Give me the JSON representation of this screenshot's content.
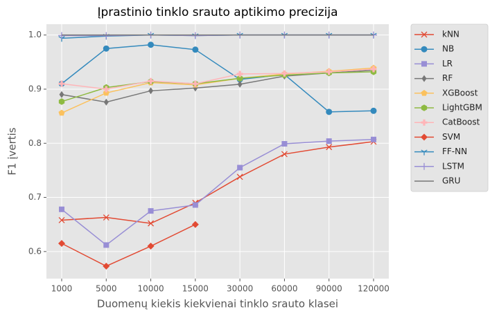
{
  "chart_data": {
    "type": "line",
    "title": "Įprastinio tinklo srauto aptikimo precizija",
    "xlabel": "Duomenų kiekis kiekvienai tinklo srauto klasei",
    "ylabel": "F1 įvertis",
    "categories": [
      "1000",
      "5000",
      "10000",
      "15000",
      "30000",
      "60000",
      "90000",
      "120000"
    ],
    "ylim": [
      0.55,
      1.02
    ],
    "yticks": [
      0.6,
      0.7,
      0.8,
      0.9,
      {
        "value": 1.0,
        "label": "1.0"
      }
    ],
    "grid": true,
    "legend": "outside-right",
    "series": [
      {
        "name": "kNN",
        "color": "#E24A33",
        "marker": "x",
        "values": [
          0.658,
          0.663,
          0.652,
          0.69,
          0.738,
          0.78,
          0.793,
          0.803
        ]
      },
      {
        "name": "NB",
        "color": "#348ABD",
        "marker": "o",
        "values": [
          0.91,
          0.975,
          0.982,
          0.973,
          0.918,
          0.927,
          0.858,
          0.86
        ]
      },
      {
        "name": "LR",
        "color": "#988ED5",
        "marker": "s",
        "values": [
          0.678,
          0.612,
          0.675,
          0.686,
          0.755,
          0.799,
          0.804,
          0.807
        ]
      },
      {
        "name": "RF",
        "color": "#777777",
        "marker": "d",
        "values": [
          0.89,
          0.876,
          0.897,
          0.902,
          0.909,
          0.924,
          0.93,
          0.935
        ]
      },
      {
        "name": "XGBoost",
        "color": "#FBC15E",
        "marker": "p",
        "values": [
          0.856,
          0.893,
          0.912,
          0.908,
          0.92,
          0.928,
          0.933,
          0.939
        ]
      },
      {
        "name": "LightGBM",
        "color": "#8EBA42",
        "marker": "h",
        "values": [
          0.877,
          0.903,
          0.914,
          0.91,
          0.92,
          0.926,
          0.93,
          0.932
        ]
      },
      {
        "name": "CatBoost",
        "color": "#FFB5B8",
        "marker": "P",
        "values": [
          0.91,
          0.9,
          0.915,
          0.91,
          0.928,
          0.929,
          0.932,
          0.937
        ]
      },
      {
        "name": "SVM",
        "color": "#E24A33",
        "marker": "D",
        "values": [
          0.615,
          0.573,
          0.61,
          0.65,
          null,
          null,
          null,
          null
        ]
      },
      {
        "name": "FF-NN",
        "color": "#348ABD",
        "marker": "1",
        "values": [
          0.994,
          0.998,
          1.0,
          0.999,
          1.0,
          1.0,
          1.0,
          1.0
        ]
      },
      {
        "name": "LSTM",
        "color": "#988ED5",
        "marker": "+",
        "values": [
          0.999,
          0.999,
          1.0,
          0.999,
          1.0,
          1.0,
          1.0,
          1.0
        ]
      },
      {
        "name": "GRU",
        "color": "#777777",
        "marker": "none",
        "values": [
          1.0,
          1.0,
          1.0,
          1.0,
          1.0,
          1.0,
          1.0,
          1.0
        ]
      }
    ]
  }
}
